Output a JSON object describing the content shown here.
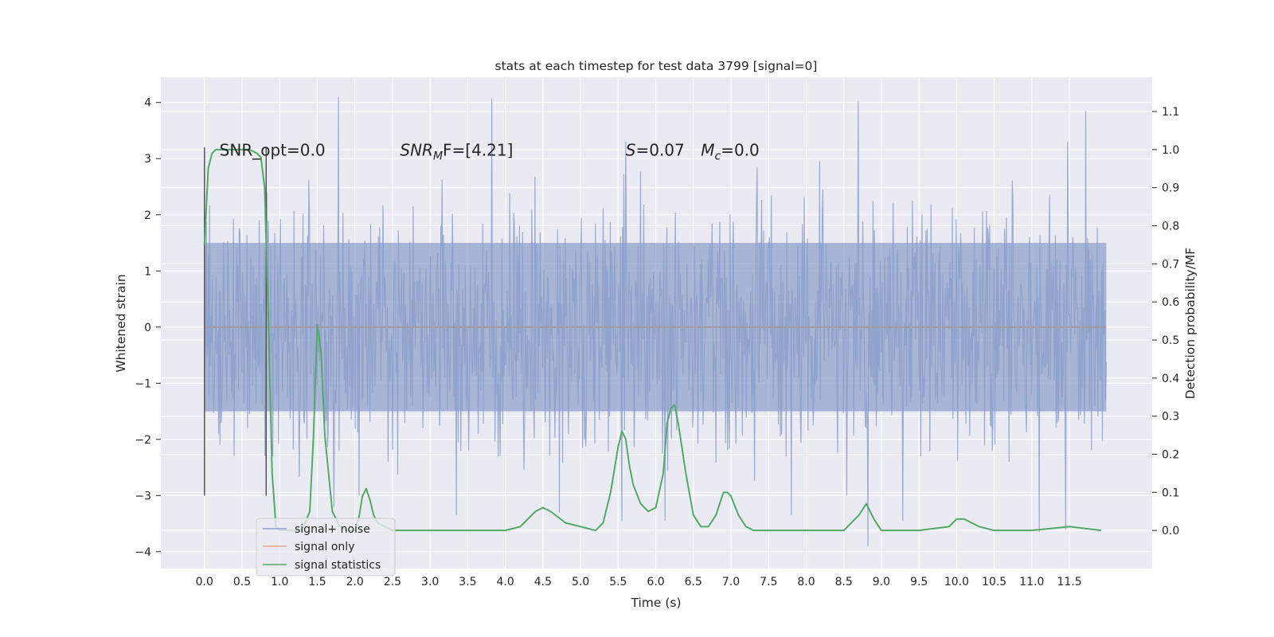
{
  "chart_data": {
    "type": "line",
    "title": "stats at each timestep for test data 3799 [signal=0]",
    "xlabel": "Time (s)",
    "ylabel": "Whitened strain",
    "y2label": "Detection probability/MF",
    "xlim": [
      -0.58,
      12.6
    ],
    "ylim": [
      -4.3,
      4.45
    ],
    "y2lim": [
      -0.1,
      1.19
    ],
    "x_ticks": [
      "0.0",
      "0.5",
      "1.0",
      "1.5",
      "2.0",
      "2.5",
      "3.0",
      "3.5",
      "4.0",
      "4.5",
      "5.0",
      "5.5",
      "6.0",
      "6.5",
      "7.0",
      "7.5",
      "8.0",
      "8.5",
      "9.0",
      "9.5",
      "10.0",
      "10.5",
      "11.0",
      "11.5"
    ],
    "y_ticks": [
      "4",
      "3",
      "2",
      "1",
      "0",
      "−1",
      "−2",
      "−3",
      "−4"
    ],
    "y2_ticks": [
      "1.1",
      "1.0",
      "0.9",
      "0.8",
      "0.7",
      "0.6",
      "0.5",
      "0.4",
      "0.3",
      "0.2",
      "0.1",
      "0.0"
    ],
    "grid": true,
    "legend_position": "lower-left",
    "series": [
      {
        "name": "signal+ noise",
        "axis": "left",
        "color": "#8da0cb",
        "t_start": 0.0,
        "t_end": 11.99,
        "sample_rate_hz": 2048,
        "band_typical": [
          -1.5,
          1.5
        ],
        "extremes": [
          {
            "x": 1.78,
            "y": 4.1
          },
          {
            "x": 3.82,
            "y": 4.07
          },
          {
            "x": 8.69,
            "y": 4.02
          },
          {
            "x": 11.72,
            "y": 3.85
          },
          {
            "x": 5.6,
            "y": 3.3
          },
          {
            "x": 11.48,
            "y": 3.3
          },
          {
            "x": 1.72,
            "y": -3.2
          },
          {
            "x": 3.35,
            "y": -3.35
          },
          {
            "x": 4.72,
            "y": -3.3
          },
          {
            "x": 5.55,
            "y": -3.45
          },
          {
            "x": 6.12,
            "y": -3.45
          },
          {
            "x": 7.8,
            "y": -3.35
          },
          {
            "x": 8.82,
            "y": -3.9
          },
          {
            "x": 9.28,
            "y": -3.45
          },
          {
            "x": 11.1,
            "y": -3.65
          },
          {
            "x": 11.45,
            "y": -3.6
          }
        ]
      },
      {
        "name": "signal only",
        "axis": "left",
        "color": "#e8a58f",
        "x": [
          0.0,
          11.99
        ],
        "y": [
          0.0,
          0.0
        ]
      },
      {
        "name": "signal statistics",
        "axis": "right",
        "color": "#55a868",
        "x": [
          0.0,
          0.05,
          0.1,
          0.15,
          0.2,
          0.3,
          0.4,
          0.5,
          0.6,
          0.7,
          0.75,
          0.8,
          0.85,
          0.9,
          0.95,
          1.0,
          1.1,
          1.2,
          1.3,
          1.4,
          1.45,
          1.5,
          1.55,
          1.6,
          1.7,
          1.8,
          1.9,
          2.0,
          2.05,
          2.1,
          2.15,
          2.2,
          2.25,
          2.3,
          2.4,
          2.5,
          3.0,
          3.5,
          4.0,
          4.2,
          4.4,
          4.5,
          4.6,
          4.8,
          5.0,
          5.2,
          5.3,
          5.4,
          5.5,
          5.55,
          5.6,
          5.65,
          5.7,
          5.8,
          5.9,
          6.0,
          6.1,
          6.15,
          6.2,
          6.25,
          6.3,
          6.4,
          6.5,
          6.6,
          6.7,
          6.8,
          6.9,
          6.95,
          7.0,
          7.1,
          7.2,
          7.3,
          7.5,
          7.7,
          8.0,
          8.5,
          8.7,
          8.8,
          8.85,
          8.9,
          9.0,
          9.5,
          9.9,
          10.0,
          10.1,
          10.2,
          10.3,
          10.5,
          11.0,
          11.5,
          11.92
        ],
        "y": [
          0.75,
          0.95,
          0.99,
          1.0,
          1.0,
          1.0,
          1.0,
          1.0,
          1.0,
          0.99,
          0.98,
          0.9,
          0.55,
          0.15,
          0.01,
          0.0,
          0.0,
          0.0,
          0.0,
          0.05,
          0.25,
          0.54,
          0.47,
          0.25,
          0.05,
          0.01,
          0.0,
          0.0,
          0.03,
          0.09,
          0.11,
          0.08,
          0.04,
          0.02,
          0.01,
          0.0,
          0.0,
          0.0,
          0.0,
          0.01,
          0.05,
          0.06,
          0.05,
          0.02,
          0.01,
          0.0,
          0.02,
          0.1,
          0.22,
          0.26,
          0.24,
          0.17,
          0.12,
          0.07,
          0.05,
          0.06,
          0.15,
          0.28,
          0.32,
          0.33,
          0.28,
          0.15,
          0.04,
          0.01,
          0.01,
          0.04,
          0.1,
          0.1,
          0.09,
          0.04,
          0.01,
          0.0,
          0.0,
          0.0,
          0.0,
          0.0,
          0.04,
          0.07,
          0.05,
          0.03,
          0.0,
          0.0,
          0.01,
          0.03,
          0.03,
          0.02,
          0.01,
          0.0,
          0.0,
          0.01,
          0.0
        ]
      }
    ],
    "vertical_lines": [
      {
        "x": 0.0,
        "y_min": -3.0,
        "y_max": 3.2,
        "color": "#555555"
      },
      {
        "x": 0.82,
        "y_min": -3.0,
        "y_max": 3.2,
        "color": "#555555"
      }
    ],
    "annotations": [
      {
        "text": "SNR_opt=0.0",
        "x": 0.2,
        "y": 3.15
      },
      {
        "text_main": "SNR",
        "text_sub": "M",
        "text_tail": "F=[4.21]",
        "x": 2.6,
        "y": 3.15
      },
      {
        "text_main": "S",
        "text_tail": "=0.07",
        "x": 5.6,
        "y": 3.15
      },
      {
        "text_main": "M",
        "text_sub": "c",
        "text_tail": "=0.0",
        "x": 6.6,
        "y": 3.15
      }
    ]
  }
}
